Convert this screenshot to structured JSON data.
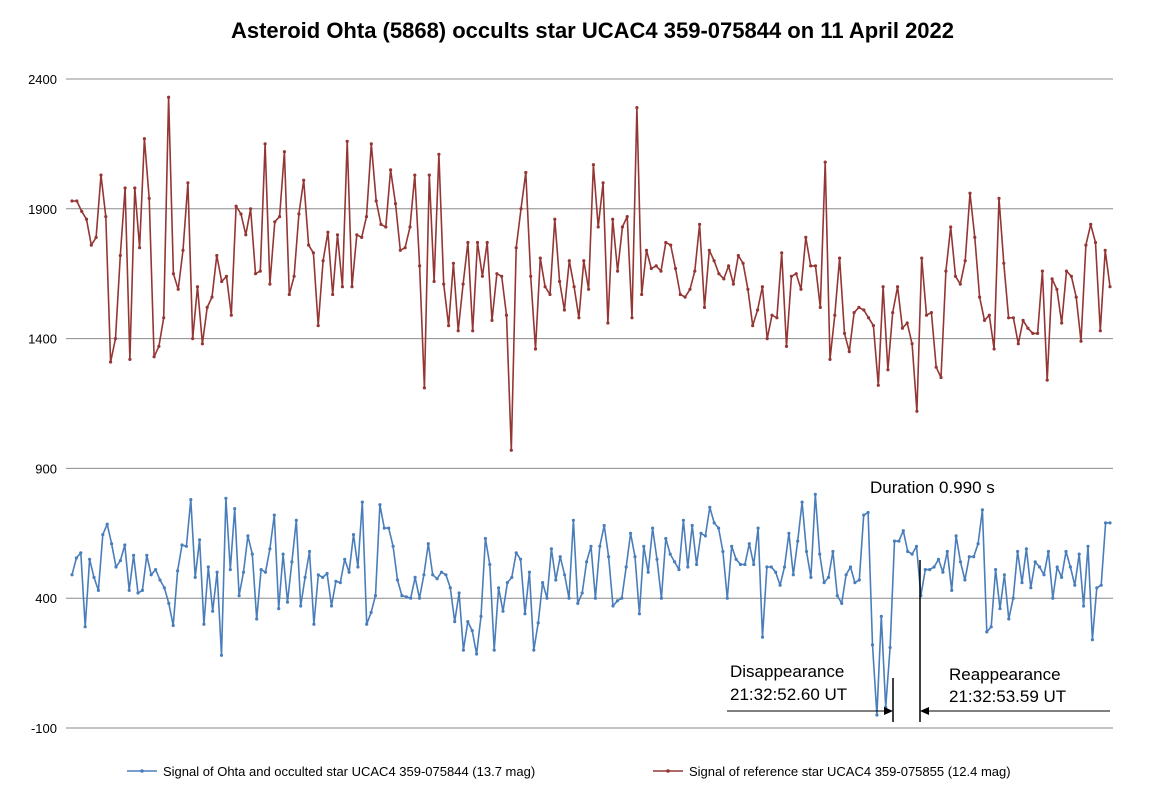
{
  "chart_data": {
    "type": "line",
    "title": "Asteroid Ohta (5868) occults star UCAC4 359-075844 on 11 April 2022",
    "xlabel": "",
    "ylabel": "",
    "ylim": [
      -100,
      2400
    ],
    "yticks": [
      "-100",
      "400",
      "900",
      "1400",
      "1900",
      "2400"
    ],
    "grid": "horizontal",
    "legend_position": "bottom",
    "series": [
      {
        "name": "Signal of Ohta and occulted star UCAC4 359-075844 (13.7 mag)",
        "color": "#4a7ebb",
        "values": [
          490,
          555,
          575,
          290,
          550,
          480,
          430,
          645,
          685,
          610,
          520,
          545,
          605,
          430,
          565,
          420,
          430,
          565,
          490,
          510,
          470,
          440,
          380,
          295,
          505,
          605,
          600,
          780,
          480,
          625,
          300,
          520,
          350,
          500,
          180,
          785,
          510,
          745,
          410,
          500,
          640,
          570,
          320,
          510,
          500,
          590,
          720,
          360,
          570,
          385,
          540,
          700,
          370,
          480,
          580,
          300,
          490,
          480,
          495,
          370,
          465,
          460,
          550,
          500,
          645,
          520,
          770,
          300,
          345,
          410,
          760,
          670,
          670,
          600,
          470,
          410,
          405,
          400,
          480,
          400,
          490,
          610,
          490,
          475,
          500,
          490,
          440,
          310,
          420,
          200,
          310,
          275,
          185,
          330,
          630,
          530,
          200,
          440,
          350,
          460,
          480,
          575,
          550,
          340,
          500,
          200,
          305,
          460,
          400,
          590,
          470,
          560,
          490,
          400,
          700,
          380,
          420,
          540,
          600,
          400,
          600,
          680,
          560,
          370,
          390,
          400,
          520,
          650,
          560,
          340,
          600,
          500,
          670,
          550,
          400,
          630,
          570,
          540,
          510,
          700,
          520,
          680,
          530,
          650,
          640,
          750,
          690,
          670,
          580,
          400,
          600,
          550,
          530,
          530,
          610,
          530,
          670,
          250,
          520,
          520,
          500,
          450,
          520,
          650,
          490,
          620,
          770,
          580,
          480,
          800,
          570,
          460,
          480,
          580,
          410,
          380,
          490,
          520,
          460,
          470,
          720,
          730,
          220,
          -50,
          330,
          -20,
          210,
          620,
          620,
          660,
          580,
          570,
          600,
          410,
          510,
          510,
          520,
          550,
          500,
          580,
          430,
          640,
          540,
          470,
          560,
          560,
          610,
          740,
          270,
          290,
          510,
          360,
          490,
          320,
          400,
          580,
          460,
          590,
          440,
          540,
          520,
          490,
          580,
          400,
          520,
          480,
          580,
          520,
          450,
          570,
          370,
          600,
          240,
          440,
          450,
          690,
          690
        ]
      },
      {
        "name": "Signal of reference star UCAC4 359-075855 (12.4 mag)",
        "color": "#943634",
        "values": [
          1930,
          1930,
          1890,
          1860,
          1760,
          1790,
          2030,
          1870,
          1310,
          1400,
          1720,
          1980,
          1320,
          1980,
          1750,
          2170,
          1940,
          1330,
          1370,
          1480,
          2330,
          1650,
          1590,
          1740,
          2000,
          1400,
          1600,
          1380,
          1520,
          1560,
          1720,
          1620,
          1640,
          1490,
          1910,
          1880,
          1800,
          1900,
          1650,
          1660,
          2150,
          1610,
          1850,
          1870,
          2120,
          1570,
          1640,
          1880,
          2010,
          1760,
          1730,
          1450,
          1700,
          1810,
          1570,
          1800,
          1600,
          2160,
          1600,
          1800,
          1790,
          1870,
          2150,
          1930,
          1840,
          1830,
          2050,
          1920,
          1740,
          1750,
          1830,
          2030,
          1680,
          1210,
          2030,
          1620,
          2110,
          1610,
          1450,
          1690,
          1430,
          1610,
          1770,
          1430,
          1770,
          1640,
          1770,
          1470,
          1650,
          1640,
          1490,
          970,
          1750,
          1900,
          2040,
          1640,
          1360,
          1710,
          1600,
          1570,
          1860,
          1620,
          1510,
          1700,
          1600,
          1480,
          1700,
          1590,
          2070,
          1830,
          2000,
          1460,
          1860,
          1660,
          1830,
          1870,
          1480,
          2290,
          1570,
          1740,
          1670,
          1680,
          1660,
          1770,
          1760,
          1670,
          1570,
          1560,
          1590,
          1660,
          1840,
          1520,
          1740,
          1700,
          1650,
          1630,
          1680,
          1610,
          1720,
          1690,
          1590,
          1450,
          1510,
          1600,
          1400,
          1490,
          1480,
          1730,
          1370,
          1640,
          1650,
          1590,
          1790,
          1680,
          1680,
          1520,
          2080,
          1320,
          1490,
          1710,
          1420,
          1350,
          1500,
          1520,
          1510,
          1480,
          1450,
          1220,
          1600,
          1280,
          1500,
          1600,
          1440,
          1460,
          1380,
          1120,
          1710,
          1490,
          1500,
          1290,
          1250,
          1660,
          1830,
          1640,
          1610,
          1700,
          1960,
          1790,
          1560,
          1470,
          1490,
          1360,
          1940,
          1690,
          1480,
          1480,
          1380,
          1470,
          1440,
          1420,
          1420,
          1660,
          1240,
          1630,
          1590,
          1460,
          1660,
          1640,
          1560,
          1390,
          1760,
          1840,
          1770,
          1430,
          1740,
          1600
        ]
      }
    ],
    "annotations": {
      "duration": "Duration 0.990 s",
      "disappearance_label": "Disappearance",
      "disappearance_time": "21:32:52.60 UT",
      "reappearance_label": "Reappearance",
      "reappearance_time": "21:32:53.59 UT"
    }
  }
}
